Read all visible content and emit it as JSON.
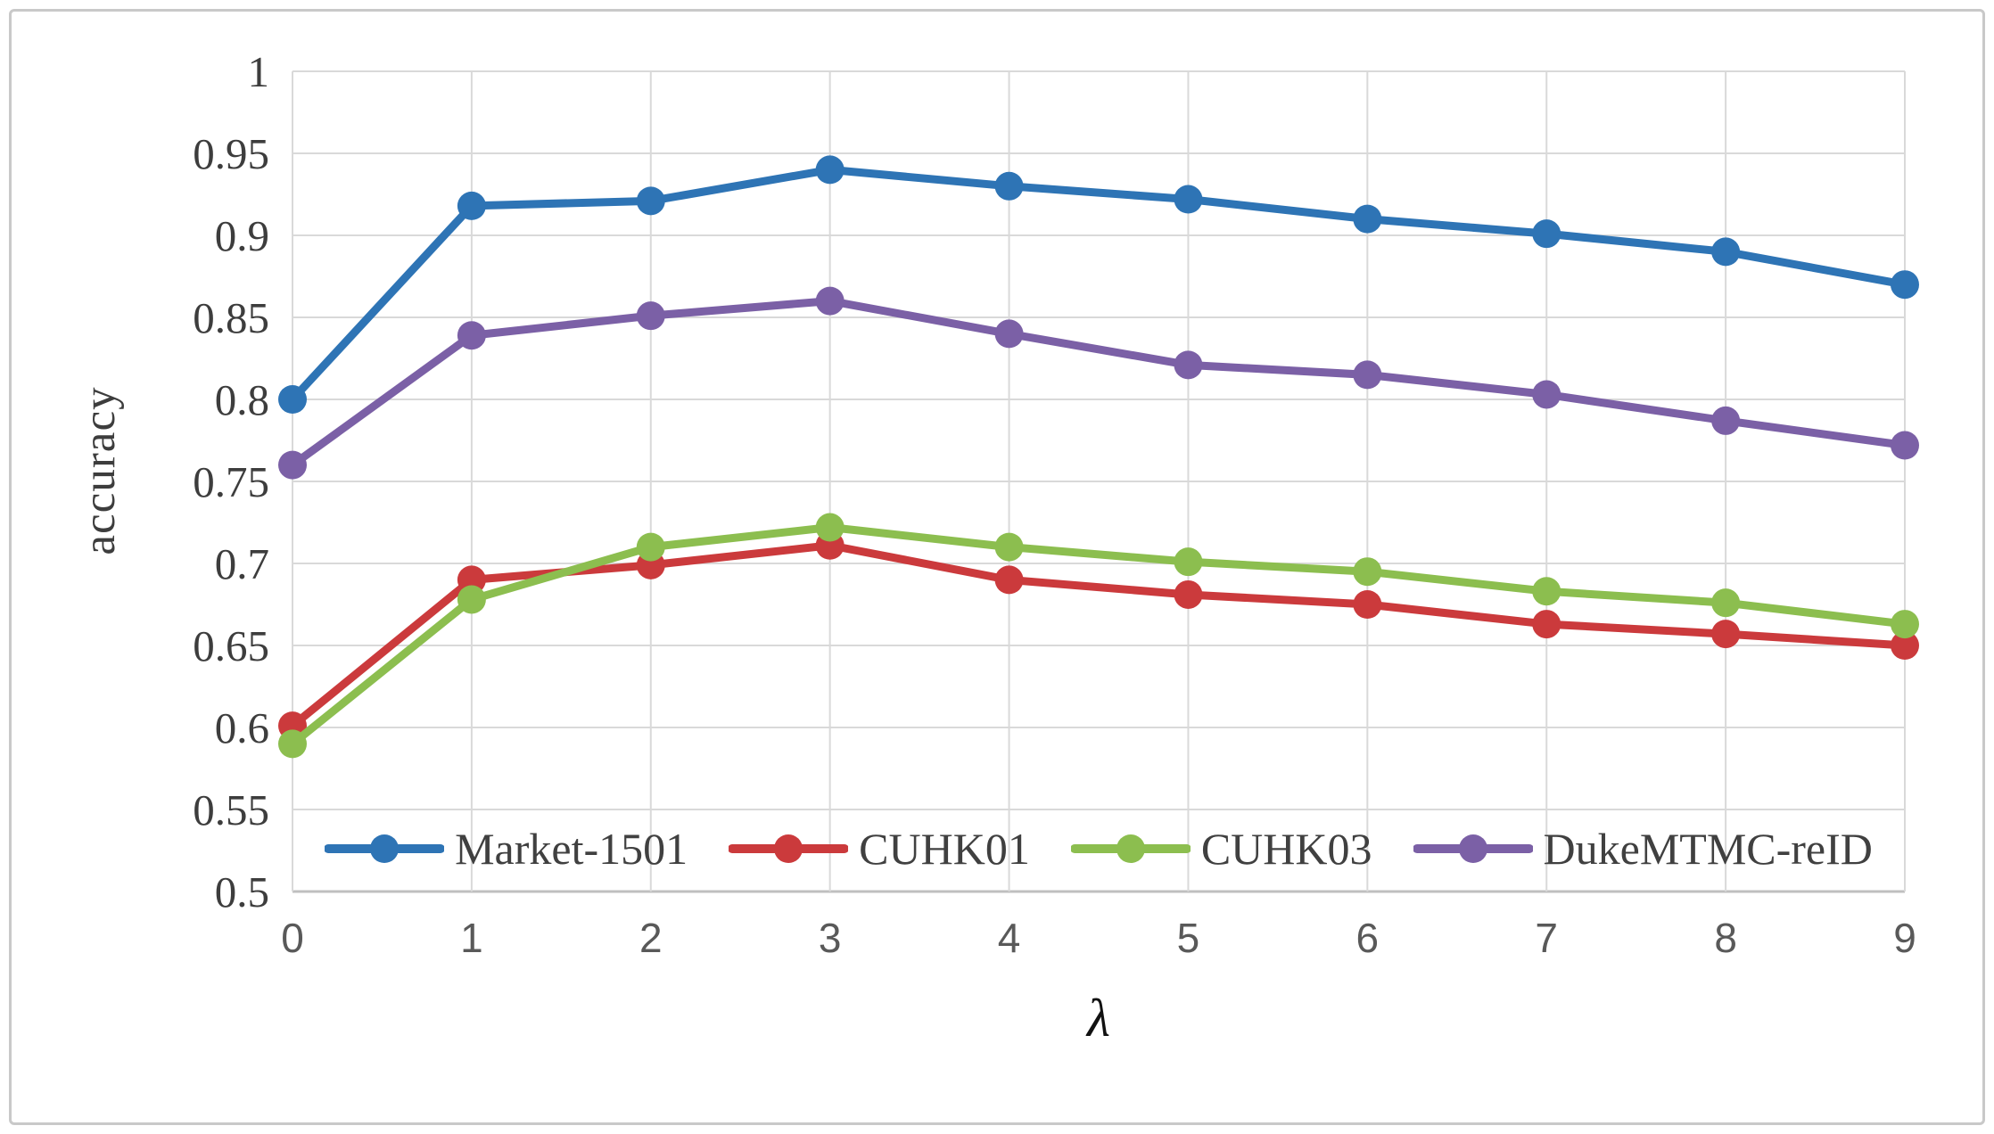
{
  "figure": {
    "border_color": "#c9c9c9",
    "background": "#ffffff"
  },
  "chart_data": {
    "type": "line",
    "title": "",
    "xlabel": "λ",
    "ylabel": "accuracy",
    "x": [
      0,
      1,
      2,
      3,
      4,
      5,
      6,
      7,
      8,
      9
    ],
    "xlim": [
      0,
      9
    ],
    "ylim": [
      0.5,
      1.0
    ],
    "grid": true,
    "legend_position": "bottom-inside",
    "xticks": [
      {
        "value": 0,
        "label": "0"
      },
      {
        "value": 1,
        "label": "1"
      },
      {
        "value": 2,
        "label": "2"
      },
      {
        "value": 3,
        "label": "3"
      },
      {
        "value": 4,
        "label": "4"
      },
      {
        "value": 5,
        "label": "5"
      },
      {
        "value": 6,
        "label": "6"
      },
      {
        "value": 7,
        "label": "7"
      },
      {
        "value": 8,
        "label": "8"
      },
      {
        "value": 9,
        "label": "9"
      }
    ],
    "yticks": [
      {
        "value": 1.0,
        "label": "1"
      },
      {
        "value": 0.95,
        "label": "0.95"
      },
      {
        "value": 0.9,
        "label": "0.9"
      },
      {
        "value": 0.85,
        "label": "0.85"
      },
      {
        "value": 0.8,
        "label": "0.8"
      },
      {
        "value": 0.75,
        "label": "0.75"
      },
      {
        "value": 0.7,
        "label": "0.7"
      },
      {
        "value": 0.65,
        "label": "0.65"
      },
      {
        "value": 0.6,
        "label": "0.6"
      },
      {
        "value": 0.55,
        "label": "0.55"
      },
      {
        "value": 0.5,
        "label": "0.5"
      }
    ],
    "series": [
      {
        "name": "Market-1501",
        "color": "#2E74B5",
        "values": [
          0.8,
          0.918,
          0.921,
          0.94,
          0.93,
          0.922,
          0.91,
          0.901,
          0.89,
          0.87
        ]
      },
      {
        "name": "CUHK01",
        "color": "#CB3A3C",
        "values": [
          0.601,
          0.69,
          0.699,
          0.711,
          0.69,
          0.681,
          0.675,
          0.663,
          0.657,
          0.65
        ]
      },
      {
        "name": "CUHK03",
        "color": "#8CBE4F",
        "values": [
          0.59,
          0.678,
          0.71,
          0.722,
          0.71,
          0.701,
          0.695,
          0.683,
          0.676,
          0.663
        ]
      },
      {
        "name": "DukeMTMC-reID",
        "color": "#7B60A6",
        "values": [
          0.76,
          0.839,
          0.851,
          0.86,
          0.84,
          0.821,
          0.815,
          0.803,
          0.787,
          0.772
        ]
      }
    ],
    "style": {
      "grid_color": "#D9D9D9",
      "axis_line_color": "#BFBFBF",
      "ytick_color": "#3d3d3d",
      "xtick_color": "#595959"
    }
  }
}
